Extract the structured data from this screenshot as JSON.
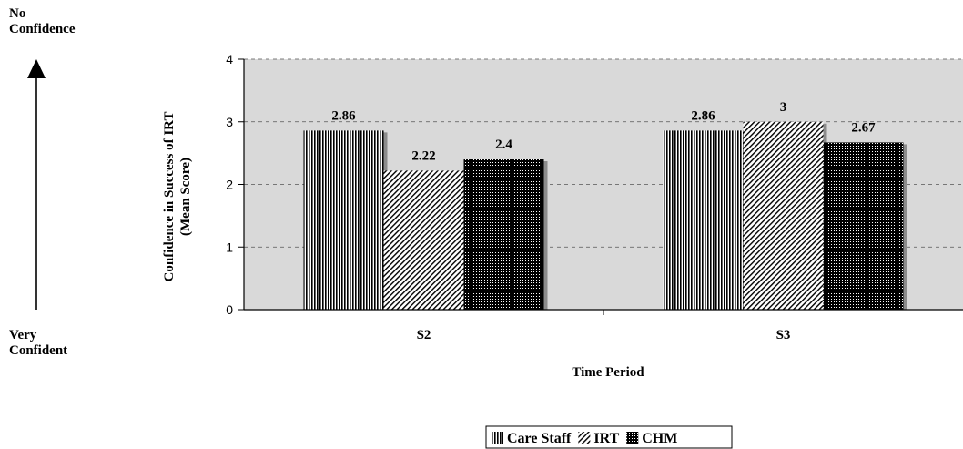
{
  "side_labels": {
    "top": "No\nConfidence",
    "bottom": "Very\nConfident"
  },
  "chart_data": {
    "type": "bar",
    "categories": [
      "S2",
      "S3"
    ],
    "series": [
      {
        "name": "Care Staff",
        "values": [
          2.86,
          2.86
        ],
        "labels": [
          "2.86",
          "2.86"
        ],
        "pattern": "vertical-lines"
      },
      {
        "name": "IRT",
        "values": [
          2.22,
          3
        ],
        "labels": [
          "2.22",
          "3"
        ],
        "pattern": "diagonal-lines"
      },
      {
        "name": "CHM",
        "values": [
          2.4,
          2.67
        ],
        "labels": [
          "2.4",
          "2.67"
        ],
        "pattern": "dense-dots"
      }
    ],
    "title": "",
    "xlabel": "Time Period",
    "ylabel_line1": "Confidence in Success of IRT",
    "ylabel_line2": "(Mean Score)",
    "ylim": [
      0,
      4
    ],
    "yticks": [
      0,
      1,
      2,
      3,
      4
    ],
    "grid": true,
    "plot_background": "#d9d9d9",
    "legend_position": "bottom-center"
  }
}
